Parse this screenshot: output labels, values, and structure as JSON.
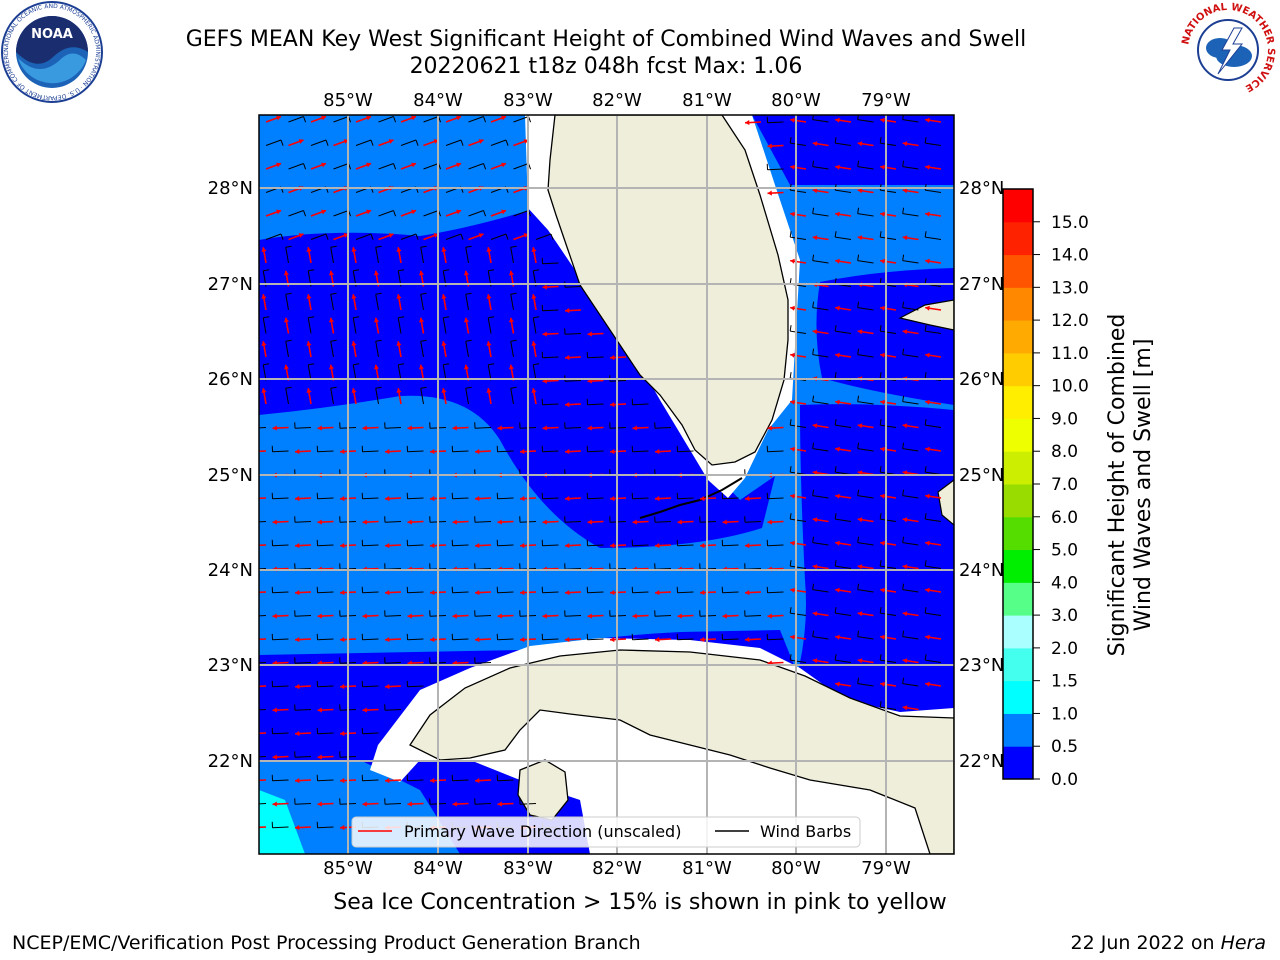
{
  "title_line1": "GEFS MEAN Key West Significant Height of Combined Wind Waves and Swell",
  "title_line2": "20220621 t18z 048h fcst   Max: 1.06",
  "logos": {
    "left_text": "NOAA",
    "left_ring_text": "NATIONAL OCEANIC AND ATMOSPHERIC ADMINISTRATION · U.S. DEPARTMENT OF COMMERCE",
    "right_ring_text": "NATIONAL WEATHER SERVICE"
  },
  "map": {
    "lon_labels": [
      "85°W",
      "84°W",
      "83°W",
      "82°W",
      "81°W",
      "80°W",
      "79°W"
    ],
    "lat_labels": [
      "28°N",
      "27°N",
      "26°N",
      "25°N",
      "24°N",
      "23°N",
      "22°N"
    ],
    "land_color": "#efeedb",
    "water_low_color": "#0000fe",
    "water_mid_color": "#0080ff",
    "water_high_color": "#00ffff"
  },
  "legend": {
    "wave_label": "Primary Wave Direction (unscaled)",
    "barb_label": "Wind Barbs",
    "wave_color": "#ff0000",
    "barb_color": "#000000"
  },
  "colorbar": {
    "label_line1": "Significant Height of Combined",
    "label_line2": "Wind Waves and Swell [m]",
    "ticks": [
      "0.0",
      "0.5",
      "1.0",
      "1.5",
      "2.0",
      "3.0",
      "4.0",
      "5.0",
      "6.0",
      "7.0",
      "8.0",
      "9.0",
      "10.0",
      "11.0",
      "12.0",
      "13.0",
      "14.0",
      "15.0"
    ],
    "colors": [
      "#0000ff",
      "#0080ff",
      "#00ffff",
      "#44ffee",
      "#aaffff",
      "#55ff88",
      "#00ee00",
      "#55dd00",
      "#99dd00",
      "#ccee00",
      "#eeff00",
      "#ffee00",
      "#ffcc00",
      "#ffaa00",
      "#ff8800",
      "#ff5500",
      "#ff2200",
      "#ff0000"
    ]
  },
  "ice_note": "Sea Ice Concentration > 15% is shown in pink to yellow",
  "credit": "NCEP/EMC/Verification Post Processing Product Generation Branch",
  "stamp_date": "22 Jun 2022 on ",
  "stamp_host": "Hera"
}
